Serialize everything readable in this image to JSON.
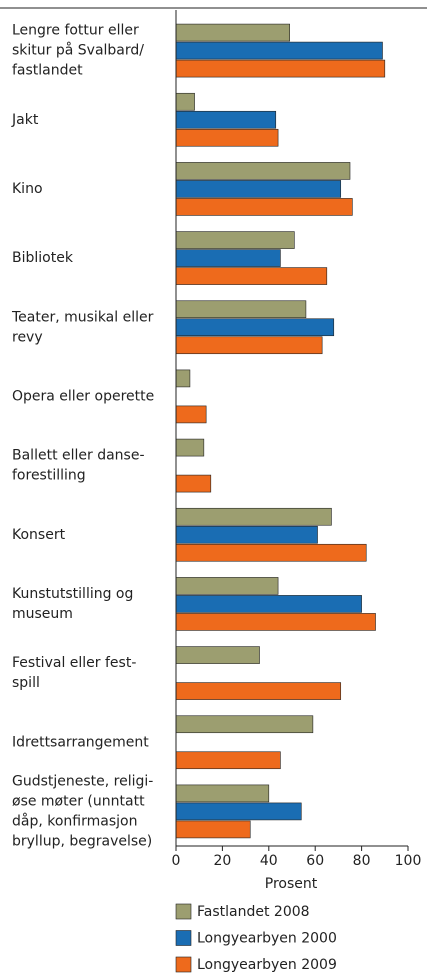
{
  "chart_data": {
    "type": "bar",
    "orientation": "horizontal",
    "categories": [
      "Lengre fottur eller\nskitur på Svalbard/\nfastlandet",
      "Jakt",
      "Kino",
      "Bibliotek",
      "Teater, musikal eller\nrevy",
      "Opera eller operette",
      "Ballett eller danse-\nforestilling",
      "Konsert",
      "Kunstutstilling og\nmuseum",
      "Festival eller fest-\nspill",
      "Idrettsarrangement",
      "Gudstjeneste, religi-\nøse møter (unntatt\ndåp, konfirmasjon\nbryllup, begravelse)"
    ],
    "series": [
      {
        "name": "Fastlandet 2008",
        "color": "#9c9e70",
        "values": [
          49,
          8,
          75,
          51,
          56,
          6,
          12,
          67,
          44,
          36,
          59,
          40
        ]
      },
      {
        "name": "Longyearbyen 2000",
        "color": "#1a6db3",
        "values": [
          89,
          43,
          71,
          45,
          68,
          null,
          null,
          61,
          80,
          null,
          null,
          54
        ]
      },
      {
        "name": "Longyearbyen 2009",
        "color": "#ee6a1c",
        "values": [
          90,
          44,
          76,
          65,
          63,
          13,
          15,
          82,
          86,
          71,
          45,
          32
        ]
      }
    ],
    "xlabel": "Prosent",
    "xlim": [
      0,
      100
    ],
    "xticks": [
      0,
      20,
      40,
      60,
      80,
      100
    ],
    "grid": false,
    "legend": "bottom"
  }
}
